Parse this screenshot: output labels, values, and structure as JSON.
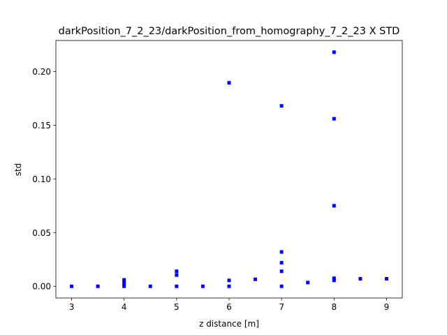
{
  "chart_data": {
    "type": "scatter",
    "title": "darkPosition_7_2_23/darkPosition_from_homography_7_2_23 X STD",
    "xlabel": "z distance [m]",
    "ylabel": "std",
    "xlim": [
      2.7,
      9.3
    ],
    "ylim": [
      -0.0109,
      0.2289
    ],
    "xticks": [
      3,
      4,
      5,
      6,
      7,
      8,
      9
    ],
    "xtick_labels": [
      "3",
      "4",
      "5",
      "6",
      "7",
      "8",
      "9"
    ],
    "yticks": [
      0.0,
      0.05,
      0.1,
      0.15,
      0.2
    ],
    "ytick_labels": [
      "0.00",
      "0.05",
      "0.10",
      "0.15",
      "0.20"
    ],
    "grid": false,
    "marker_color": "#0000ff",
    "marker": "square",
    "series": [
      {
        "points": [
          {
            "x": 3.0,
            "y": 0.0
          },
          {
            "x": 3.5,
            "y": 0.0
          },
          {
            "x": 4.0,
            "y": 0.0
          },
          {
            "x": 4.0,
            "y": 0.002
          },
          {
            "x": 4.0,
            "y": 0.004
          },
          {
            "x": 4.0,
            "y": 0.006
          },
          {
            "x": 4.5,
            "y": 0.0
          },
          {
            "x": 5.0,
            "y": 0.0
          },
          {
            "x": 5.0,
            "y": 0.0105
          },
          {
            "x": 5.0,
            "y": 0.014
          },
          {
            "x": 5.5,
            "y": 0.0
          },
          {
            "x": 6.0,
            "y": 0.0
          },
          {
            "x": 6.0,
            "y": 0.0055
          },
          {
            "x": 6.0,
            "y": 0.1895
          },
          {
            "x": 6.5,
            "y": 0.0065
          },
          {
            "x": 7.0,
            "y": 0.0
          },
          {
            "x": 7.0,
            "y": 0.014
          },
          {
            "x": 7.0,
            "y": 0.022
          },
          {
            "x": 7.0,
            "y": 0.032
          },
          {
            "x": 7.0,
            "y": 0.168
          },
          {
            "x": 7.5,
            "y": 0.0035
          },
          {
            "x": 8.0,
            "y": 0.0055
          },
          {
            "x": 8.0,
            "y": 0.0075
          },
          {
            "x": 8.0,
            "y": 0.075
          },
          {
            "x": 8.0,
            "y": 0.156
          },
          {
            "x": 8.0,
            "y": 0.218
          },
          {
            "x": 8.5,
            "y": 0.007
          },
          {
            "x": 9.0,
            "y": 0.007
          }
        ]
      }
    ]
  }
}
